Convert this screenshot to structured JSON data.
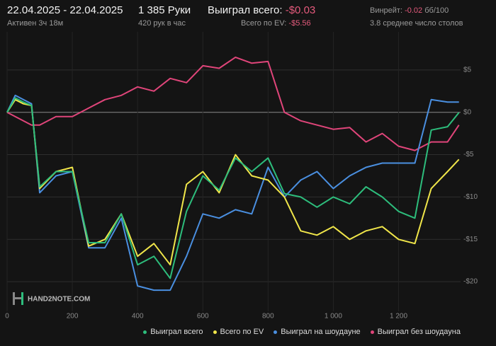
{
  "header": {
    "date_range": "22.04.2025 - 22.04.2025",
    "active": "Активен 3ч 18м",
    "hands": "1 385 Руки",
    "hands_per_hour": "420 рук в час",
    "won_label": "Выиграл всего:",
    "won_value": "-$0.03",
    "ev_label": "Всего по EV:",
    "ev_value": "-$5.56",
    "winrate_label": "Винрейт:",
    "winrate_value": "-0.02",
    "winrate_unit": "бб/100",
    "tables": "3.8 среднее число столов",
    "watermark": "HAND2NOTE.COM"
  },
  "chart_data": {
    "type": "line",
    "x": [
      0,
      25,
      50,
      75,
      100,
      150,
      200,
      250,
      300,
      350,
      400,
      450,
      500,
      550,
      600,
      650,
      700,
      750,
      800,
      850,
      900,
      950,
      1000,
      1050,
      1100,
      1150,
      1200,
      1250,
      1300,
      1350,
      1385
    ],
    "series": [
      {
        "name": "Выиграл всего",
        "color": "#2dbd7c",
        "values": [
          0,
          1.7,
          1.2,
          0.8,
          -8.8,
          -7,
          -7,
          -15.4,
          -15.4,
          -12,
          -18,
          -17,
          -19.6,
          -11.7,
          -7.5,
          -9.2,
          -5.4,
          -7,
          -5.4,
          -9.6,
          -10,
          -11.2,
          -10,
          -10.8,
          -8.8,
          -10,
          -11.7,
          -12.5,
          -2.1,
          -1.7,
          -0.03
        ]
      },
      {
        "name": "Всего по EV",
        "color": "#f0e64a",
        "values": [
          0,
          1.5,
          1,
          0.8,
          -9,
          -7,
          -6.5,
          -15.8,
          -15,
          -12,
          -17,
          -15.5,
          -18,
          -8.5,
          -7,
          -9.5,
          -5,
          -7.5,
          -8,
          -10,
          -14,
          -14.5,
          -13.5,
          -15,
          -14,
          -13.5,
          -15,
          -15.5,
          -9,
          -7,
          -5.56
        ]
      },
      {
        "name": "Выиграл на шоудауне",
        "color": "#4a8fe0",
        "values": [
          0,
          2,
          1.5,
          1,
          -9.5,
          -7.5,
          -7,
          -16,
          -16,
          -12.5,
          -20.5,
          -21,
          -21,
          -17,
          -12,
          -12.5,
          -11.5,
          -12,
          -6.5,
          -10,
          -8,
          -7,
          -9,
          -7.5,
          -6.5,
          -6,
          -6,
          -6,
          1.5,
          1.2,
          1.2
        ]
      },
      {
        "name": "Выиграл без шоудауна",
        "color": "#e0457a",
        "values": [
          0,
          -0.5,
          -1,
          -1.5,
          -1.5,
          -0.5,
          -0.5,
          0.5,
          1.5,
          2,
          3,
          2.5,
          4,
          3.5,
          5.5,
          5.2,
          6.5,
          5.8,
          6,
          0,
          -1,
          -1.5,
          -2,
          -1.8,
          -3.5,
          -2.5,
          -4,
          -4.5,
          -3.5,
          -3.5,
          -1.5
        ]
      }
    ],
    "xlim": [
      0,
      1390
    ],
    "xticks": [
      0,
      200,
      400,
      600,
      800,
      {
        "value": 1000,
        "label": "1 000"
      },
      {
        "value": 1200,
        "label": "1 200"
      }
    ],
    "ylim": [
      -23.5,
      9.5
    ],
    "yticks": [
      {
        "value": 5,
        "label": "$5"
      },
      {
        "value": 0,
        "label": "$0"
      },
      {
        "value": -5,
        "label": "-$5"
      },
      {
        "value": -10,
        "label": "-$10"
      },
      {
        "value": -15,
        "label": "-$15"
      },
      {
        "value": -20,
        "label": "-$20"
      }
    ],
    "grid": true
  }
}
